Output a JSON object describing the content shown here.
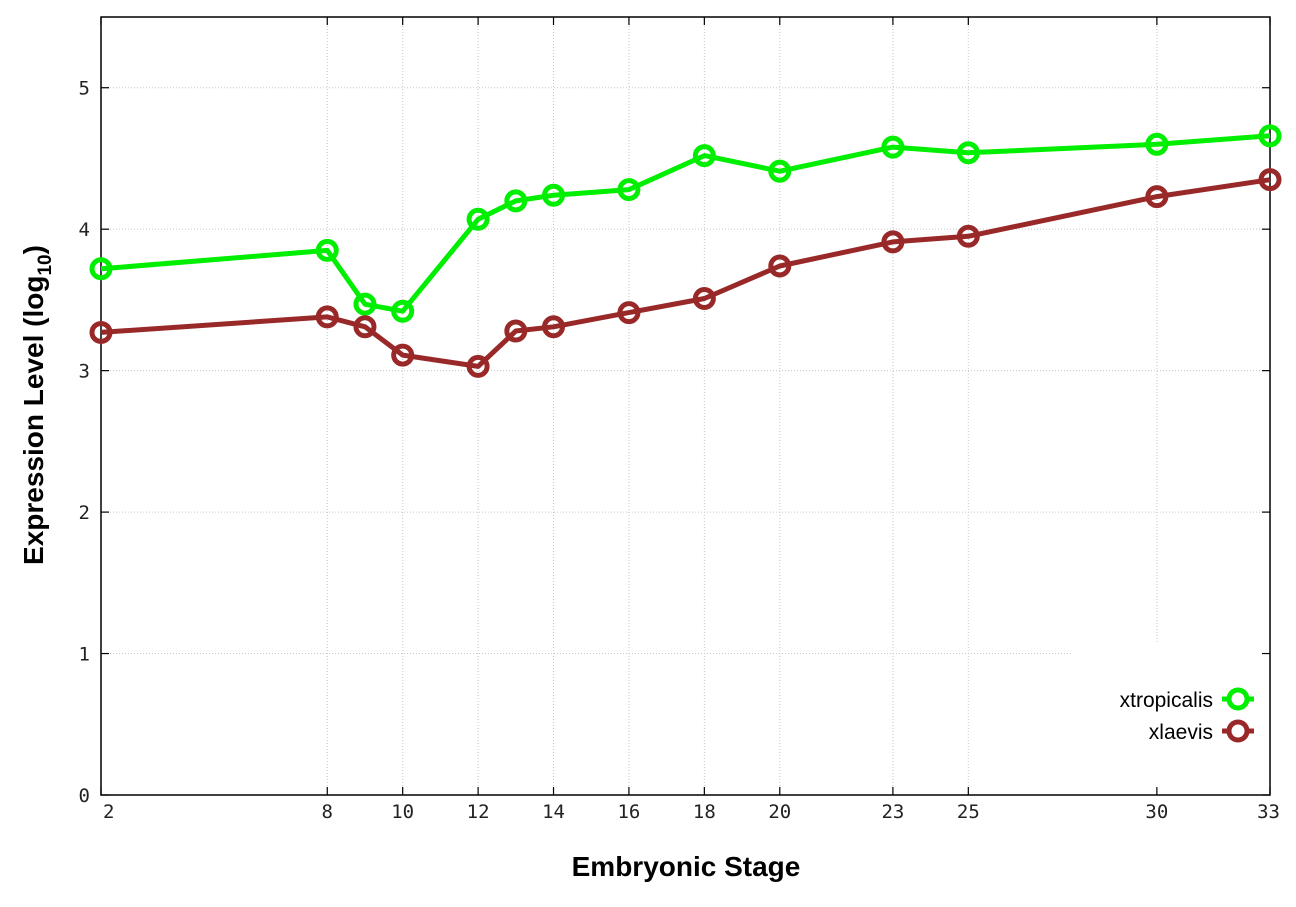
{
  "chart_data": {
    "type": "line",
    "xlabel": "Embryonic Stage",
    "ylabel_main": "Expression Level (log",
    "ylabel_sub": "10",
    "ylabel_close": ")",
    "xlim": [
      2,
      33
    ],
    "ylim": [
      0,
      5.5
    ],
    "x_ticks": [
      2,
      8,
      10,
      12,
      14,
      16,
      18,
      20,
      23,
      25,
      30,
      33
    ],
    "x_tick_labels": [
      "2",
      "8",
      "10",
      "12",
      "14",
      "16",
      "18",
      "20",
      "23",
      "25",
      "30",
      "33"
    ],
    "y_ticks": [
      0,
      1,
      2,
      3,
      4,
      5
    ],
    "y_tick_labels": [
      "0",
      "1",
      "2",
      "3",
      "4",
      "5"
    ],
    "grid": true,
    "legend_position": "bottom-right",
    "x": [
      2,
      8,
      9,
      10,
      12,
      13,
      14,
      16,
      18,
      20,
      23,
      25,
      30,
      33
    ],
    "series": [
      {
        "name": "xtropicalis",
        "color": "#00ee00",
        "values": [
          3.72,
          3.85,
          3.47,
          3.42,
          4.07,
          4.2,
          4.24,
          4.28,
          4.52,
          4.41,
          4.58,
          4.54,
          4.6,
          4.66
        ]
      },
      {
        "name": "xlaevis",
        "color": "#992929",
        "values": [
          3.27,
          3.38,
          3.31,
          3.11,
          3.03,
          3.28,
          3.31,
          3.41,
          3.51,
          3.74,
          3.91,
          3.95,
          4.23,
          4.35
        ]
      }
    ]
  }
}
